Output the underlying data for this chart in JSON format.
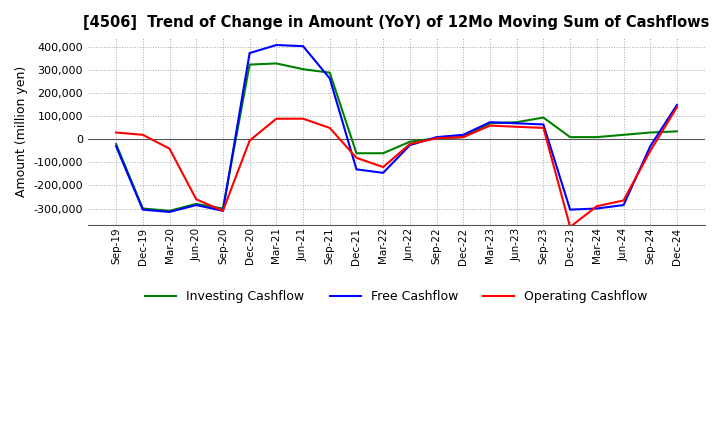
{
  "title": "[4506]  Trend of Change in Amount (YoY) of 12Mo Moving Sum of Cashflows",
  "ylabel": "Amount (million yen)",
  "ylim": [
    -370000,
    440000
  ],
  "yticks": [
    -300000,
    -200000,
    -100000,
    0,
    100000,
    200000,
    300000,
    400000
  ],
  "background_color": "#ffffff",
  "grid_color": "#aaaaaa",
  "x_labels": [
    "Sep-19",
    "Dec-19",
    "Mar-20",
    "Jun-20",
    "Sep-20",
    "Dec-20",
    "Mar-21",
    "Jun-21",
    "Sep-21",
    "Dec-21",
    "Mar-22",
    "Jun-22",
    "Sep-22",
    "Dec-22",
    "Mar-23",
    "Jun-23",
    "Sep-23",
    "Dec-23",
    "Mar-24",
    "Jun-24",
    "Sep-24",
    "Dec-24"
  ],
  "operating": [
    30000,
    20000,
    -40000,
    -260000,
    -310000,
    -5000,
    90000,
    90000,
    50000,
    -80000,
    -120000,
    -20000,
    5000,
    10000,
    60000,
    55000,
    50000,
    -380000,
    -290000,
    -265000,
    -50000,
    140000
  ],
  "investing": [
    -20000,
    -300000,
    -310000,
    -280000,
    -300000,
    325000,
    330000,
    305000,
    290000,
    -60000,
    -60000,
    -10000,
    5000,
    10000,
    70000,
    75000,
    95000,
    10000,
    10000,
    20000,
    30000,
    35000
  ],
  "free": [
    -30000,
    -305000,
    -315000,
    -285000,
    -310000,
    375000,
    410000,
    405000,
    265000,
    -130000,
    -145000,
    -25000,
    10000,
    20000,
    75000,
    70000,
    65000,
    -305000,
    -300000,
    -285000,
    -30000,
    150000
  ],
  "operating_color": "#ff0000",
  "investing_color": "#008000",
  "free_color": "#0000ff",
  "line_width": 1.5
}
